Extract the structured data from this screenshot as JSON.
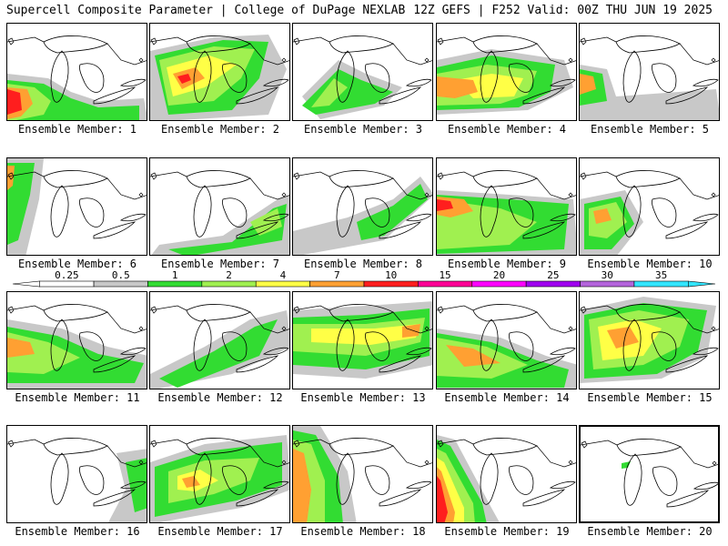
{
  "header": {
    "left_title": "Supercell Composite Parameter | College of DuPage NEXLAB",
    "right_title": "12Z GEFS | F252 Valid: 00Z THU JUN 19 2025"
  },
  "panels": [
    {
      "label": "Ensemble Member: 1"
    },
    {
      "label": "Ensemble Member: 2"
    },
    {
      "label": "Ensemble Member: 3"
    },
    {
      "label": "Ensemble Member: 4"
    },
    {
      "label": "Ensemble Member: 5"
    },
    {
      "label": "Ensemble Member: 6"
    },
    {
      "label": "Ensemble Member: 7"
    },
    {
      "label": "Ensemble Member: 8"
    },
    {
      "label": "Ensemble Member: 9"
    },
    {
      "label": "Ensemble Member: 10"
    },
    {
      "label": "Ensemble Member: 11"
    },
    {
      "label": "Ensemble Member: 12"
    },
    {
      "label": "Ensemble Member: 13"
    },
    {
      "label": "Ensemble Member: 14"
    },
    {
      "label": "Ensemble Member: 15"
    },
    {
      "label": "Ensemble Member: 16"
    },
    {
      "label": "Ensemble Member: 17"
    },
    {
      "label": "Ensemble Member: 18"
    },
    {
      "label": "Ensemble Member: 19"
    },
    {
      "label": "Ensemble Member: 20"
    }
  ],
  "colorbar": {
    "thresholds": [
      "0.25",
      "0.5",
      "1",
      "2",
      "4",
      "7",
      "10",
      "15",
      "20",
      "25",
      "30",
      "35"
    ],
    "colors": [
      "#ffffff",
      "#c8c8c8",
      "#32dc32",
      "#a0f050",
      "#ffff46",
      "#ffa032",
      "#ff1e1e",
      "#ff0096",
      "#ff00ff",
      "#a000f0",
      "#b464dc",
      "#32e6ff"
    ]
  }
}
